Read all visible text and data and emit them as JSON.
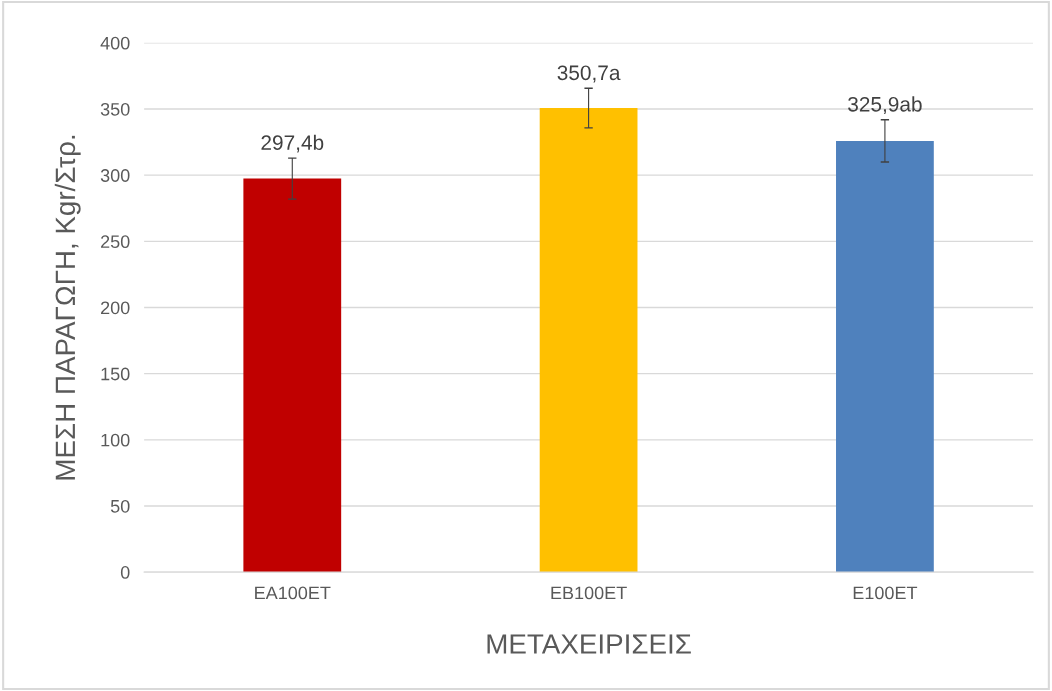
{
  "chart_data": {
    "type": "bar",
    "xlabel": "ΜΕΤΑΧΕΙΡΙΣΕΙΣ",
    "ylabel": "ΜΕΣΗ ΠΑΡΑΓΩΓΗ, Kgr/Στρ.",
    "categories": [
      "ΕΑ100ΕΤ",
      "ΕΒ100ΕΤ",
      "Ε100ΕΤ"
    ],
    "values": [
      297.4,
      350.7,
      325.9
    ],
    "colors": [
      "#c00000",
      "#ffc000",
      "#4f81bd"
    ],
    "errors": [
      15.5,
      15,
      16
    ],
    "value_labels": [
      "297,4b",
      "350,7a",
      "325,9ab"
    ],
    "ylim": [
      0,
      400
    ],
    "yticks": [
      0,
      50,
      100,
      150,
      200,
      250,
      300,
      350,
      400
    ],
    "grid": "y",
    "legend": false
  }
}
